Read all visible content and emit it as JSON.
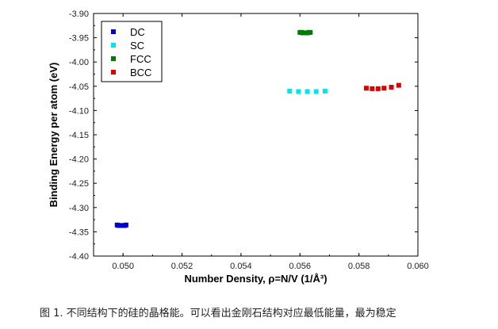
{
  "chart_data": {
    "type": "scatter",
    "xlabel": "Number Density, ρ=N/V (1/Å³)",
    "ylabel": "Binding Energy per atom (eV)",
    "xlim": [
      0.049,
      0.06
    ],
    "ylim": [
      -4.4,
      -3.9
    ],
    "x_ticks": [
      "0.050",
      "0.052",
      "0.054",
      "0.056",
      "0.058",
      "0.060"
    ],
    "y_ticks": [
      "-3.90",
      "-3.95",
      "-4.00",
      "-4.05",
      "-4.10",
      "-4.15",
      "-4.20",
      "-4.25",
      "-4.30",
      "-4.35",
      "-4.40"
    ],
    "legend_position": "top-left",
    "series": [
      {
        "name": "DC",
        "color": "#0000cc",
        "x": [
          0.0498,
          0.04985,
          0.0499,
          0.04995,
          0.05,
          0.05005,
          0.0501
        ],
        "y": [
          -4.336,
          -4.337,
          -4.337,
          -4.337,
          -4.337,
          -4.337,
          -4.336
        ]
      },
      {
        "name": "SC",
        "color": "#00e5ee",
        "x": [
          0.05565,
          0.05595,
          0.05625,
          0.05655,
          0.05685
        ],
        "y": [
          -4.06,
          -4.061,
          -4.061,
          -4.061,
          -4.06
        ]
      },
      {
        "name": "FCC",
        "color": "#007a00",
        "x": [
          0.056,
          0.05605,
          0.0561,
          0.05615,
          0.0562,
          0.05625,
          0.0563,
          0.05635
        ],
        "y": [
          -3.939,
          -3.939,
          -3.94,
          -3.94,
          -3.94,
          -3.94,
          -3.939,
          -3.939
        ]
      },
      {
        "name": "BCC",
        "color": "#dd0000",
        "x": [
          0.05825,
          0.05845,
          0.05865,
          0.05885,
          0.0591,
          0.05935
        ],
        "y": [
          -4.054,
          -4.055,
          -4.055,
          -4.054,
          -4.052,
          -4.048
        ]
      }
    ]
  },
  "caption": "图 1. 不同结构下的硅的晶格能。可以看出金刚石结构对应最低能量，最为稳定"
}
